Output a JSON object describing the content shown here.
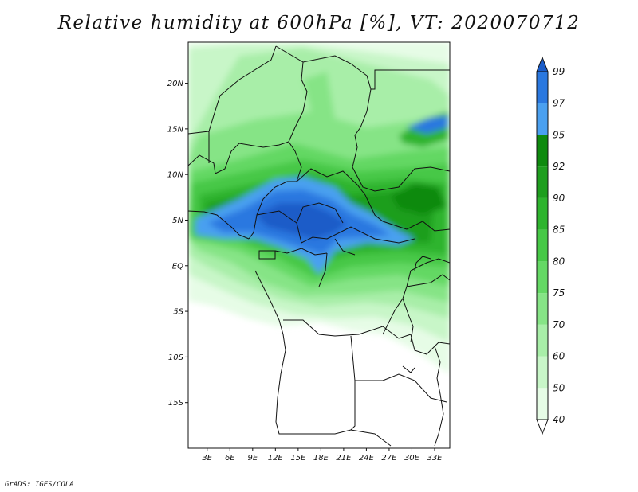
{
  "title": "Relative humidity at 600hPa [%], VT: 2020070712",
  "credit": "GrADS: IGES/COLA",
  "axes": {
    "lat_labels": [
      "20N",
      "15N",
      "10N",
      "5N",
      "EQ",
      "5S",
      "10S",
      "15S"
    ],
    "lat_values": [
      20,
      15,
      10,
      5,
      0,
      -5,
      -10,
      -15
    ],
    "lon_labels": [
      "3E",
      "6E",
      "9E",
      "12E",
      "15E",
      "18E",
      "21E",
      "24E",
      "27E",
      "30E",
      "33E"
    ],
    "lon_values": [
      3,
      6,
      9,
      12,
      15,
      18,
      21,
      24,
      27,
      30,
      33
    ],
    "lon_range": [
      0.5,
      35
    ],
    "lat_range": [
      -20,
      24.5
    ]
  },
  "colorbar": {
    "labels": [
      "40",
      "50",
      "60",
      "70",
      "75",
      "80",
      "85",
      "90",
      "92",
      "95",
      "97",
      "99"
    ],
    "colors": [
      "#ffffff",
      "#e6fce6",
      "#c8f6c8",
      "#a8eea8",
      "#86e486",
      "#64d864",
      "#46c846",
      "#2eb42e",
      "#1e9e1e",
      "#0e8a0e",
      "#4aa0f0",
      "#2a78e0",
      "#1a5cc8"
    ]
  }
}
